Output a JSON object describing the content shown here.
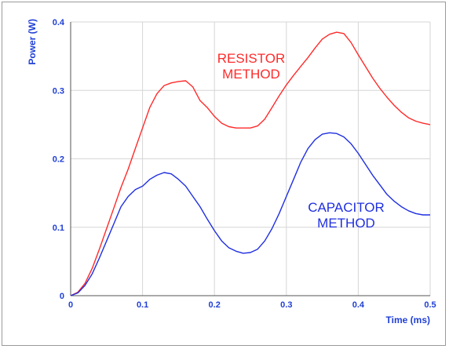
{
  "chart_data": {
    "type": "line",
    "title": "",
    "xlabel": "Time (ms)",
    "ylabel": "Power (W)",
    "xlim": [
      0,
      0.5
    ],
    "ylim": [
      0,
      0.4
    ],
    "x_ticks": [
      "0",
      "0.1",
      "0.2",
      "0.3",
      "0.4",
      "0.5"
    ],
    "y_ticks": [
      "0",
      "0.1",
      "0.2",
      "0.3",
      "0.4"
    ],
    "grid": true,
    "legend": "none",
    "series": [
      {
        "key": "resistor",
        "color": "#ff2a2a",
        "x": [
          0,
          0.01,
          0.02,
          0.03,
          0.04,
          0.05,
          0.06,
          0.07,
          0.08,
          0.09,
          0.1,
          0.11,
          0.12,
          0.13,
          0.14,
          0.15,
          0.16,
          0.17,
          0.18,
          0.19,
          0.2,
          0.21,
          0.22,
          0.23,
          0.24,
          0.25,
          0.26,
          0.27,
          0.28,
          0.29,
          0.3,
          0.31,
          0.32,
          0.33,
          0.34,
          0.35,
          0.36,
          0.37,
          0.38,
          0.39,
          0.4,
          0.41,
          0.42,
          0.43,
          0.44,
          0.45,
          0.46,
          0.47,
          0.48,
          0.49,
          0.5
        ],
        "y": [
          0,
          0.005,
          0.018,
          0.04,
          0.068,
          0.098,
          0.128,
          0.158,
          0.185,
          0.215,
          0.245,
          0.275,
          0.295,
          0.307,
          0.311,
          0.313,
          0.314,
          0.305,
          0.285,
          0.275,
          0.262,
          0.252,
          0.247,
          0.245,
          0.245,
          0.245,
          0.248,
          0.258,
          0.275,
          0.292,
          0.308,
          0.322,
          0.335,
          0.348,
          0.362,
          0.375,
          0.382,
          0.385,
          0.383,
          0.37,
          0.352,
          0.335,
          0.318,
          0.303,
          0.29,
          0.278,
          0.268,
          0.26,
          0.255,
          0.252,
          0.25
        ]
      },
      {
        "key": "capacitor",
        "color": "#1f2fe0",
        "x": [
          0,
          0.01,
          0.02,
          0.03,
          0.04,
          0.05,
          0.06,
          0.07,
          0.08,
          0.09,
          0.1,
          0.11,
          0.12,
          0.13,
          0.14,
          0.15,
          0.16,
          0.17,
          0.18,
          0.19,
          0.2,
          0.21,
          0.22,
          0.23,
          0.24,
          0.25,
          0.26,
          0.27,
          0.28,
          0.29,
          0.3,
          0.31,
          0.32,
          0.33,
          0.34,
          0.35,
          0.36,
          0.37,
          0.38,
          0.39,
          0.4,
          0.41,
          0.42,
          0.43,
          0.44,
          0.45,
          0.46,
          0.47,
          0.48,
          0.49,
          0.5
        ],
        "y": [
          0,
          0.004,
          0.015,
          0.032,
          0.055,
          0.08,
          0.105,
          0.13,
          0.145,
          0.155,
          0.16,
          0.17,
          0.176,
          0.18,
          0.178,
          0.17,
          0.16,
          0.145,
          0.13,
          0.112,
          0.095,
          0.08,
          0.07,
          0.065,
          0.062,
          0.063,
          0.068,
          0.08,
          0.098,
          0.12,
          0.145,
          0.17,
          0.195,
          0.215,
          0.228,
          0.236,
          0.238,
          0.237,
          0.232,
          0.222,
          0.208,
          0.192,
          0.176,
          0.162,
          0.148,
          0.138,
          0.13,
          0.124,
          0.12,
          0.118,
          0.118
        ]
      }
    ],
    "annotations": [
      {
        "key": "resistor_label",
        "lines": [
          "RESISTOR",
          "METHOD"
        ],
        "color": "#ff2a2a"
      },
      {
        "key": "capacitor_label",
        "lines": [
          "CAPACITOR",
          "METHOD"
        ],
        "color": "#1f2fe0"
      }
    ]
  }
}
